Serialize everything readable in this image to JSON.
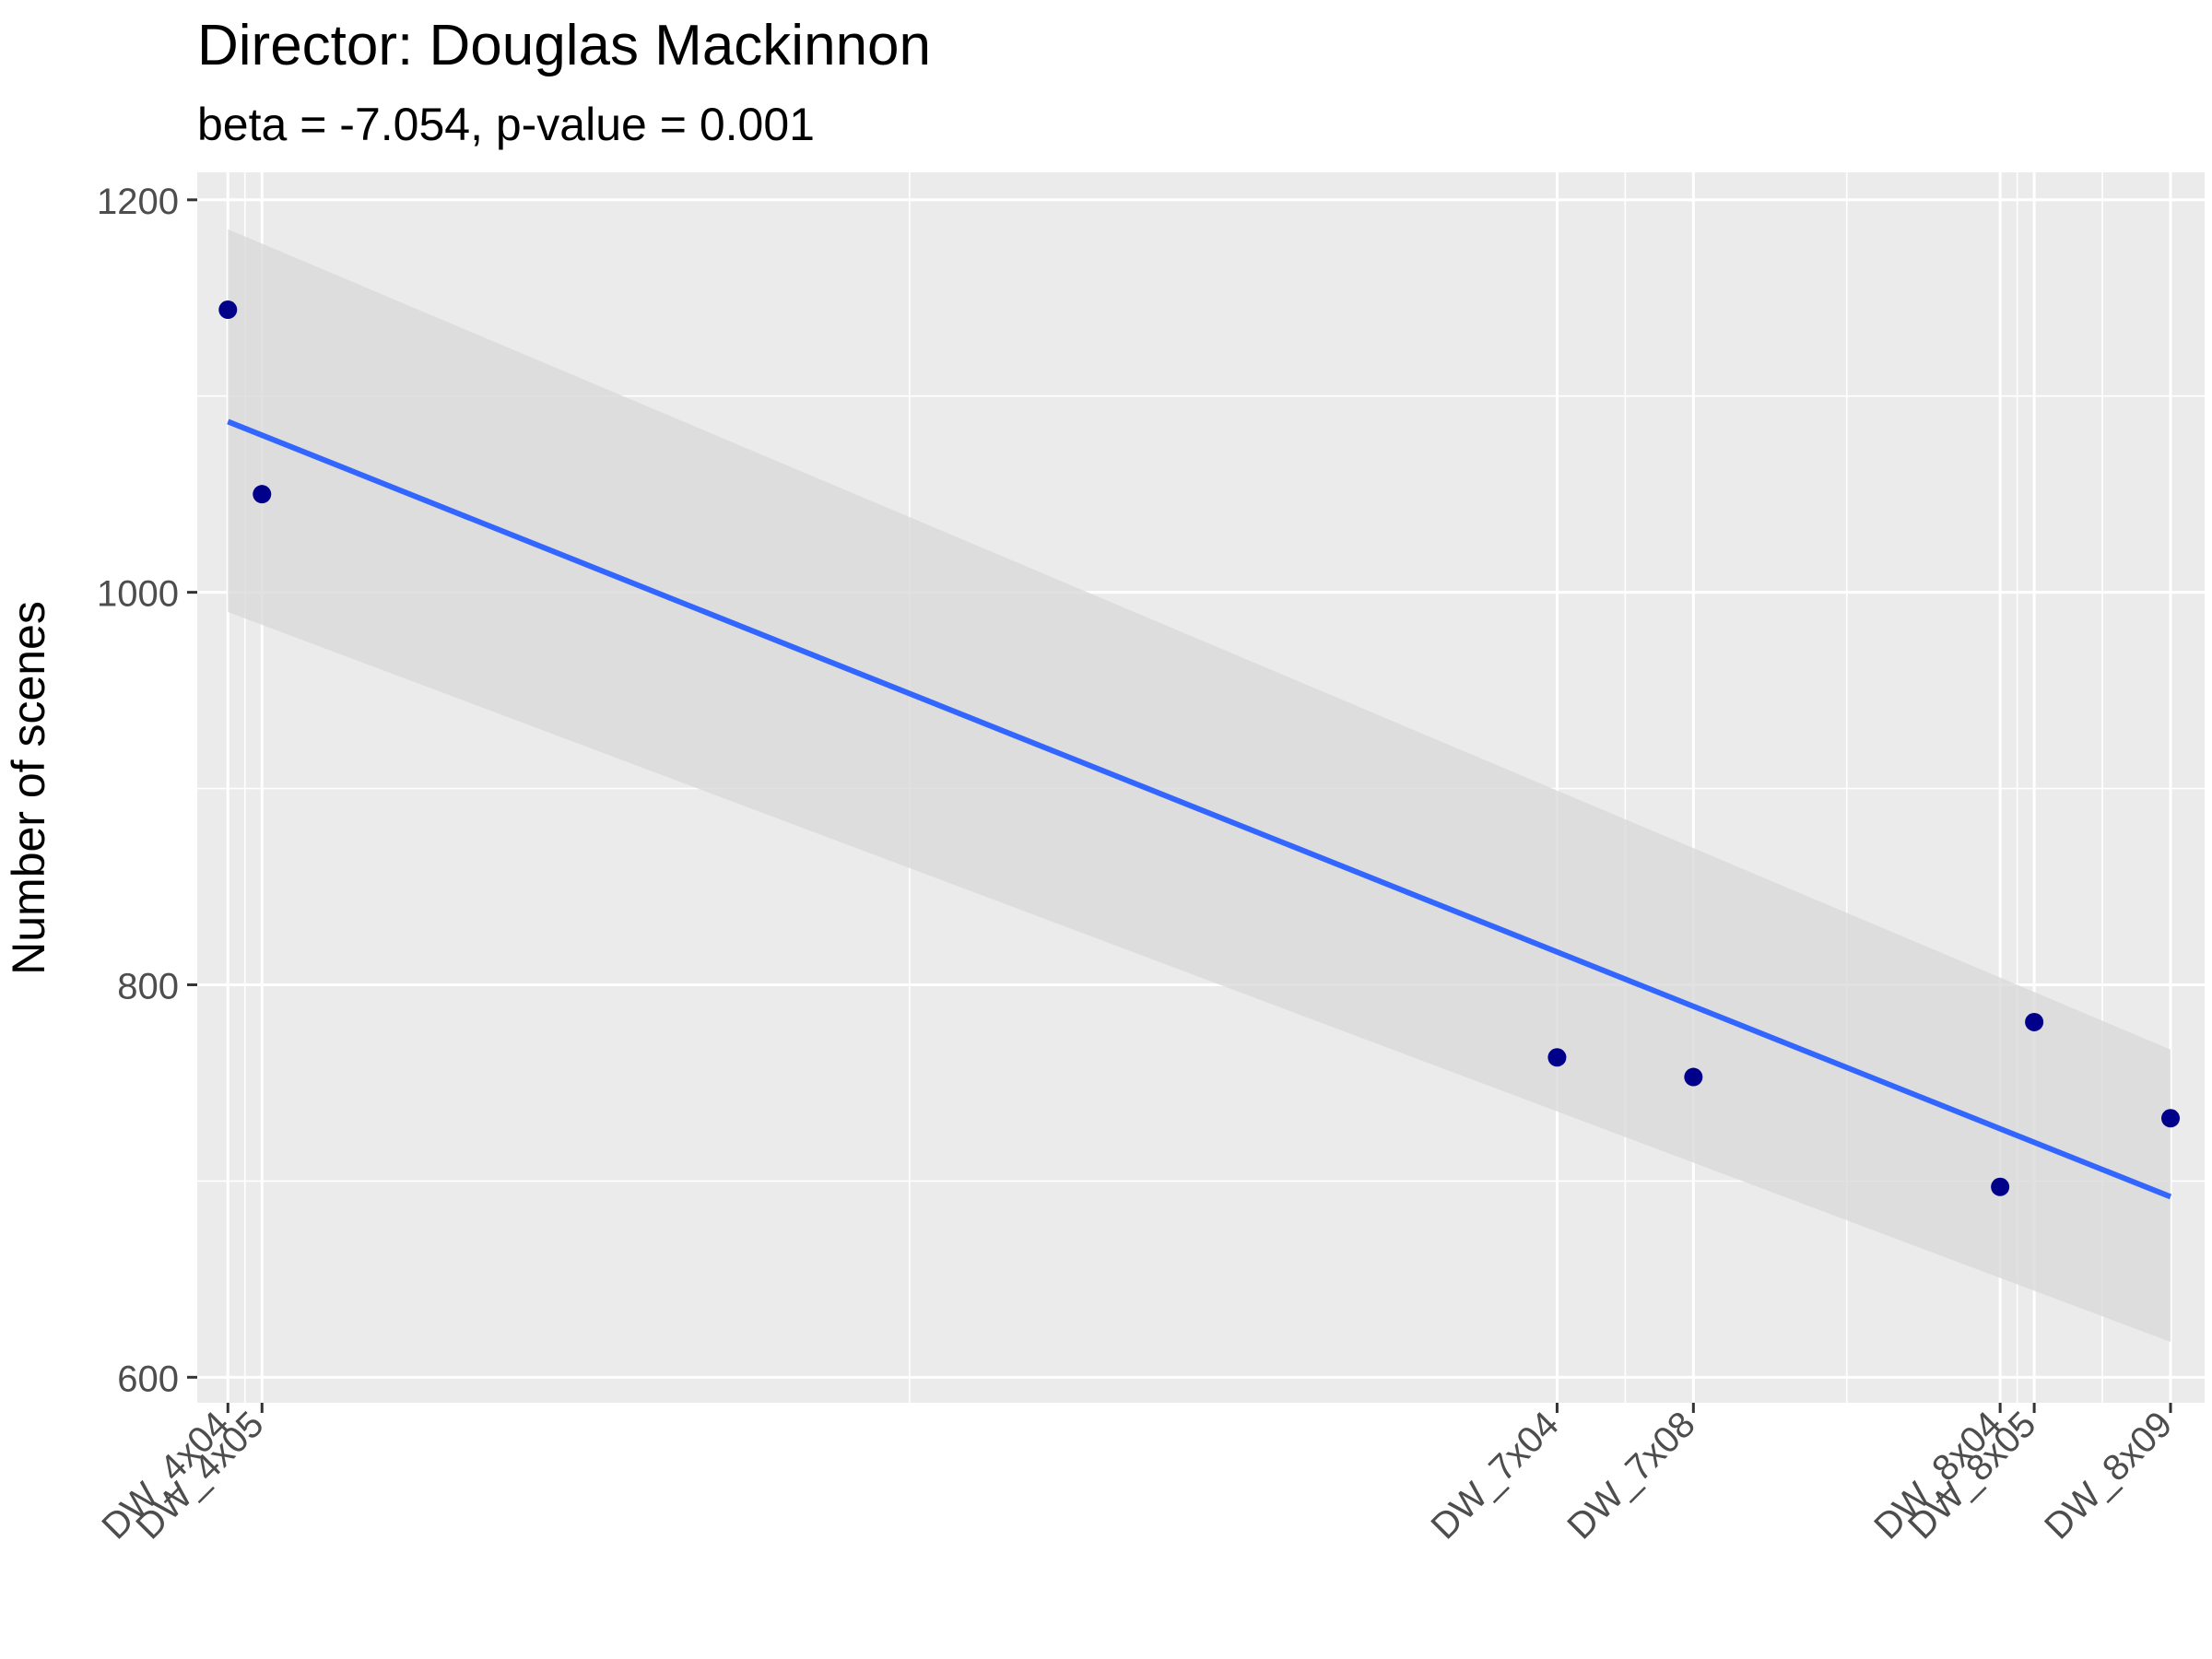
{
  "chart_data": {
    "type": "scatter",
    "title": "Director: Douglas Mackinnon",
    "subtitle": "beta = -7.054, p-value = 0.001",
    "xlabel": "",
    "ylabel": "Number of scenes",
    "x_scale": "ordinal-positioned",
    "ylim": [
      587,
      1214
    ],
    "y_ticks": [
      600,
      800,
      1000,
      1200
    ],
    "grid": true,
    "points": [
      {
        "x": 144,
        "label": "DW_4x04",
        "y": 1144
      },
      {
        "x": 145,
        "label": "DW_4x05",
        "y": 1050
      },
      {
        "x": 183,
        "label": "DW_7x04",
        "y": 763
      },
      {
        "x": 187,
        "label": "DW_7x08",
        "y": 753
      },
      {
        "x": 196,
        "label": "DW_8x04",
        "y": 697
      },
      {
        "x": 197,
        "label": "DW_8x05",
        "y": 781
      },
      {
        "x": 201,
        "label": "DW_8x09",
        "y": 732
      }
    ],
    "xlim": [
      143.1,
      202.0
    ],
    "fit": {
      "x": [
        144,
        201
      ],
      "y": [
        1087,
        692
      ],
      "ci_upper": [
        1185,
        767
      ],
      "ci_lower": [
        990,
        618
      ]
    },
    "colors": {
      "panel": "#EBEBEB",
      "grid": "#FFFFFF",
      "point": "#00008B",
      "fit_line": "#3366FF",
      "ribbon": "#D9D9D9"
    }
  }
}
